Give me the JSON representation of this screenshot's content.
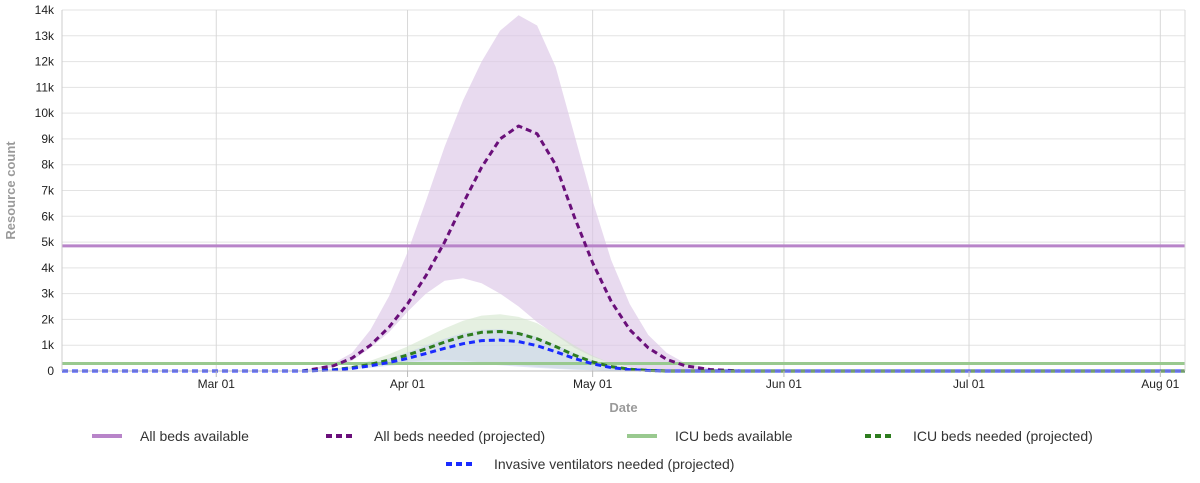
{
  "chart_data": {
    "type": "line",
    "title": "",
    "xlabel": "Date",
    "ylabel": "Resource count",
    "x_axis": {
      "start": "2020-02-05",
      "end": "2020-08-05",
      "ticks": [
        {
          "date": "2020-03-01",
          "label": "Mar 01"
        },
        {
          "date": "2020-04-01",
          "label": "Apr 01"
        },
        {
          "date": "2020-05-01",
          "label": "May 01"
        },
        {
          "date": "2020-06-01",
          "label": "Jun 01"
        },
        {
          "date": "2020-07-01",
          "label": "Jul 01"
        },
        {
          "date": "2020-08-01",
          "label": "Aug 01"
        }
      ]
    },
    "y_axis": {
      "min": 0,
      "max": 14000,
      "ticks": [
        {
          "value": 0,
          "label": "0"
        },
        {
          "value": 1000,
          "label": "1k"
        },
        {
          "value": 2000,
          "label": "2k"
        },
        {
          "value": 3000,
          "label": "3k"
        },
        {
          "value": 4000,
          "label": "4k"
        },
        {
          "value": 5000,
          "label": "5k"
        },
        {
          "value": 6000,
          "label": "6k"
        },
        {
          "value": 7000,
          "label": "7k"
        },
        {
          "value": 8000,
          "label": "8k"
        },
        {
          "value": 9000,
          "label": "9k"
        },
        {
          "value": 10000,
          "label": "10k"
        },
        {
          "value": 11000,
          "label": "11k"
        },
        {
          "value": 12000,
          "label": "12k"
        },
        {
          "value": 13000,
          "label": "13k"
        },
        {
          "value": 14000,
          "label": "14k"
        }
      ]
    },
    "grid": true,
    "legend_position": "bottom",
    "series": [
      {
        "name": "All beds available",
        "style": "solid",
        "color": "#b884c9",
        "points": [
          [
            "2020-02-05",
            4850
          ],
          [
            "2020-08-05",
            4850
          ]
        ]
      },
      {
        "name": "All beds needed (projected)",
        "style": "dashed",
        "color": "#6a0f7a",
        "band_color": "#dcc6e6",
        "points": [
          [
            "2020-02-05",
            0
          ],
          [
            "2020-03-15",
            0
          ],
          [
            "2020-03-20",
            200
          ],
          [
            "2020-03-23",
            500
          ],
          [
            "2020-03-26",
            1000
          ],
          [
            "2020-03-29",
            1700
          ],
          [
            "2020-04-01",
            2600
          ],
          [
            "2020-04-04",
            3700
          ],
          [
            "2020-04-07",
            5000
          ],
          [
            "2020-04-10",
            6500
          ],
          [
            "2020-04-13",
            7900
          ],
          [
            "2020-04-16",
            9000
          ],
          [
            "2020-04-19",
            9500
          ],
          [
            "2020-04-22",
            9200
          ],
          [
            "2020-04-25",
            8000
          ],
          [
            "2020-04-28",
            6000
          ],
          [
            "2020-05-01",
            4200
          ],
          [
            "2020-05-04",
            2700
          ],
          [
            "2020-05-07",
            1600
          ],
          [
            "2020-05-10",
            900
          ],
          [
            "2020-05-13",
            450
          ],
          [
            "2020-05-16",
            200
          ],
          [
            "2020-05-20",
            60
          ],
          [
            "2020-05-25",
            0
          ],
          [
            "2020-08-05",
            0
          ]
        ],
        "band": [
          [
            "2020-02-05",
            0,
            0
          ],
          [
            "2020-03-15",
            0,
            0
          ],
          [
            "2020-03-20",
            150,
            300
          ],
          [
            "2020-03-23",
            400,
            700
          ],
          [
            "2020-03-26",
            900,
            1600
          ],
          [
            "2020-03-29",
            1500,
            2900
          ],
          [
            "2020-04-01",
            2300,
            4600
          ],
          [
            "2020-04-04",
            3000,
            6600
          ],
          [
            "2020-04-07",
            3500,
            8700
          ],
          [
            "2020-04-10",
            3600,
            10500
          ],
          [
            "2020-04-13",
            3400,
            12000
          ],
          [
            "2020-04-16",
            3000,
            13200
          ],
          [
            "2020-04-19",
            2500,
            13800
          ],
          [
            "2020-04-22",
            1900,
            13400
          ],
          [
            "2020-04-25",
            1400,
            11800
          ],
          [
            "2020-04-28",
            900,
            9200
          ],
          [
            "2020-05-01",
            550,
            6600
          ],
          [
            "2020-05-04",
            300,
            4300
          ],
          [
            "2020-05-07",
            150,
            2600
          ],
          [
            "2020-05-10",
            60,
            1400
          ],
          [
            "2020-05-13",
            20,
            700
          ],
          [
            "2020-05-16",
            0,
            300
          ],
          [
            "2020-05-20",
            0,
            100
          ],
          [
            "2020-05-25",
            0,
            0
          ],
          [
            "2020-08-05",
            0,
            0
          ]
        ]
      },
      {
        "name": "ICU beds available",
        "style": "solid",
        "color": "#99c98f",
        "points": [
          [
            "2020-02-05",
            290
          ],
          [
            "2020-08-05",
            290
          ]
        ]
      },
      {
        "name": "ICU beds needed (projected)",
        "style": "dashed",
        "color": "#2e7d1f",
        "band_color": "#cfe3c8",
        "points": [
          [
            "2020-02-05",
            0
          ],
          [
            "2020-03-15",
            0
          ],
          [
            "2020-03-20",
            50
          ],
          [
            "2020-03-23",
            130
          ],
          [
            "2020-03-26",
            260
          ],
          [
            "2020-03-29",
            420
          ],
          [
            "2020-04-01",
            620
          ],
          [
            "2020-04-04",
            860
          ],
          [
            "2020-04-07",
            1120
          ],
          [
            "2020-04-10",
            1350
          ],
          [
            "2020-04-13",
            1500
          ],
          [
            "2020-04-16",
            1530
          ],
          [
            "2020-04-19",
            1450
          ],
          [
            "2020-04-22",
            1250
          ],
          [
            "2020-04-25",
            950
          ],
          [
            "2020-04-28",
            620
          ],
          [
            "2020-05-01",
            350
          ],
          [
            "2020-05-04",
            170
          ],
          [
            "2020-05-07",
            70
          ],
          [
            "2020-05-10",
            25
          ],
          [
            "2020-05-13",
            0
          ],
          [
            "2020-08-05",
            0
          ]
        ],
        "band": [
          [
            "2020-02-05",
            0,
            0
          ],
          [
            "2020-03-15",
            0,
            0
          ],
          [
            "2020-03-20",
            30,
            80
          ],
          [
            "2020-03-23",
            80,
            200
          ],
          [
            "2020-03-26",
            160,
            400
          ],
          [
            "2020-03-29",
            260,
            650
          ],
          [
            "2020-04-01",
            350,
            950
          ],
          [
            "2020-04-04",
            420,
            1300
          ],
          [
            "2020-04-07",
            430,
            1650
          ],
          [
            "2020-04-10",
            400,
            1950
          ],
          [
            "2020-04-13",
            340,
            2150
          ],
          [
            "2020-04-16",
            280,
            2200
          ],
          [
            "2020-04-19",
            220,
            2100
          ],
          [
            "2020-04-22",
            160,
            1850
          ],
          [
            "2020-04-25",
            110,
            1450
          ],
          [
            "2020-04-28",
            70,
            1000
          ],
          [
            "2020-05-01",
            40,
            600
          ],
          [
            "2020-05-04",
            20,
            300
          ],
          [
            "2020-05-07",
            0,
            130
          ],
          [
            "2020-05-10",
            0,
            50
          ],
          [
            "2020-05-13",
            0,
            0
          ],
          [
            "2020-08-05",
            0,
            0
          ]
        ]
      },
      {
        "name": "Invasive ventilators needed (projected)",
        "style": "dashed",
        "color": "#1a2bff",
        "band_color": "#c6cdf0",
        "points": [
          [
            "2020-02-05",
            0
          ],
          [
            "2020-03-15",
            0
          ],
          [
            "2020-03-20",
            40
          ],
          [
            "2020-03-23",
            100
          ],
          [
            "2020-03-26",
            200
          ],
          [
            "2020-03-29",
            330
          ],
          [
            "2020-04-01",
            490
          ],
          [
            "2020-04-04",
            680
          ],
          [
            "2020-04-07",
            880
          ],
          [
            "2020-04-10",
            1060
          ],
          [
            "2020-04-13",
            1180
          ],
          [
            "2020-04-16",
            1200
          ],
          [
            "2020-04-19",
            1140
          ],
          [
            "2020-04-22",
            980
          ],
          [
            "2020-04-25",
            750
          ],
          [
            "2020-04-28",
            490
          ],
          [
            "2020-05-01",
            280
          ],
          [
            "2020-05-04",
            130
          ],
          [
            "2020-05-07",
            55
          ],
          [
            "2020-05-10",
            20
          ],
          [
            "2020-05-13",
            0
          ],
          [
            "2020-08-05",
            0
          ]
        ],
        "band": [
          [
            "2020-02-05",
            0,
            0
          ],
          [
            "2020-03-15",
            0,
            0
          ],
          [
            "2020-03-20",
            25,
            60
          ],
          [
            "2020-03-23",
            60,
            150
          ],
          [
            "2020-03-26",
            120,
            300
          ],
          [
            "2020-03-29",
            200,
            490
          ],
          [
            "2020-04-01",
            270,
            720
          ],
          [
            "2020-04-04",
            320,
            990
          ],
          [
            "2020-04-07",
            330,
            1250
          ],
          [
            "2020-04-10",
            310,
            1470
          ],
          [
            "2020-04-13",
            270,
            1600
          ],
          [
            "2020-04-16",
            220,
            1620
          ],
          [
            "2020-04-19",
            170,
            1530
          ],
          [
            "2020-04-22",
            120,
            1320
          ],
          [
            "2020-04-25",
            80,
            1020
          ],
          [
            "2020-04-28",
            50,
            700
          ],
          [
            "2020-05-01",
            30,
            420
          ],
          [
            "2020-05-04",
            15,
            210
          ],
          [
            "2020-05-07",
            0,
            90
          ],
          [
            "2020-05-10",
            0,
            35
          ],
          [
            "2020-05-13",
            0,
            0
          ],
          [
            "2020-08-05",
            0,
            0
          ]
        ]
      }
    ]
  }
}
